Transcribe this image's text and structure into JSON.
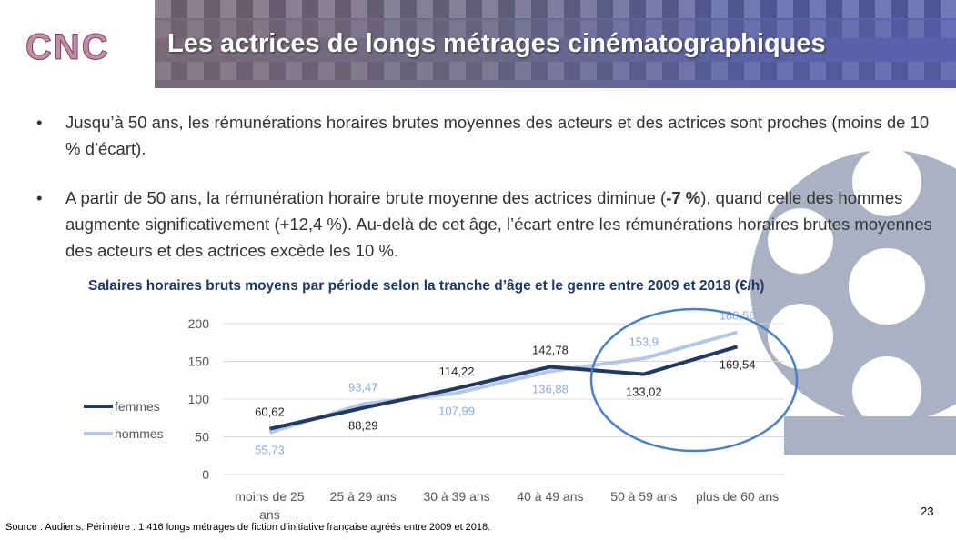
{
  "header": {
    "logo": "CNC",
    "title": "Les actrices de longs métrages cinématographiques"
  },
  "bullets": [
    {
      "text": "Jusqu’à 50 ans, les rémunérations horaires brutes moyennes des acteurs et des actrices sont proches (moins de 10 % d’écart)."
    },
    {
      "pre": "A partir de 50 ans, la rémunération horaire brute moyenne des actrices diminue (",
      "bold": "-7 %",
      "post": "), quand celle des hommes augmente significativement (+12,4 %). Au-delà de cet âge, l’écart entre les rémunérations horaires brutes moyennes des acteurs et des actrices excède les 10 %."
    }
  ],
  "chart_data": {
    "type": "line",
    "title": "Salaires horaires bruts moyens par période selon la tranche d’âge et le genre entre 2009 et 2018 (€/h)",
    "categories": [
      "moins de 25 ans",
      "25 à 29 ans",
      "30 à 39 ans",
      "40 à 49 ans",
      "50 à 59 ans",
      "plus de 60 ans"
    ],
    "series": [
      {
        "name": "femmes",
        "color": "#1f3864",
        "values": [
          60.62,
          88.29,
          114.22,
          142.78,
          133.02,
          169.54
        ],
        "labels": [
          "60,62",
          "88,29",
          "114,22",
          "142,78",
          "133,02",
          "169,54"
        ]
      },
      {
        "name": "hommes",
        "color": "#b4c7e7",
        "values": [
          55.73,
          93.47,
          107.99,
          136.88,
          153.9,
          188.56
        ],
        "labels": [
          "55,73",
          "93,47",
          "107,99",
          "136,88",
          "153,9",
          "188,56"
        ]
      }
    ],
    "ylim": [
      0,
      200
    ],
    "yticks": [
      0,
      50,
      100,
      150,
      200
    ],
    "grid": true,
    "legend": "left",
    "annotation": "ellipse highlighting 50 à 59 ans and plus de 60 ans"
  },
  "footer": {
    "source": "Source : Audiens. Périmètre : 1 416 longs métrages de fiction d’initiative française agréés entre 2009 et 2018.",
    "page": "23"
  }
}
